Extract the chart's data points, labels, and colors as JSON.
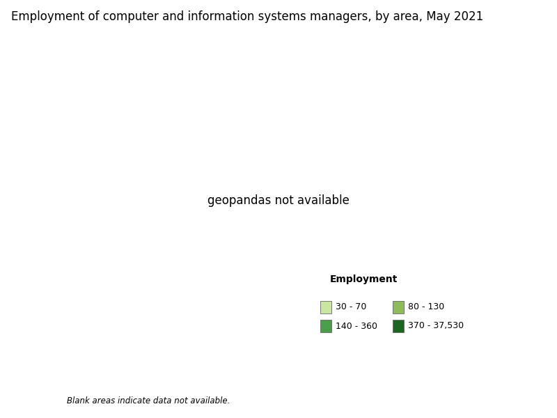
{
  "title": "Employment of computer and information systems managers, by area, May 2021",
  "legend_title": "Employment",
  "legend_entries": [
    {
      "label": "30 - 70",
      "color": "#c8e6a0"
    },
    {
      "label": "80 - 130",
      "color": "#8fbc5a"
    },
    {
      "label": "140 - 360",
      "color": "#4a9e4a"
    },
    {
      "label": "370 - 37,530",
      "color": "#1a6620"
    }
  ],
  "blank_note": "Blank areas indicate data not available.",
  "background_color": "#ffffff",
  "title_fontsize": 12,
  "map_facecolor": "#ffffff",
  "state_colors": {
    "Alabama": "#4a9e4a",
    "Alaska": "#c8e6a0",
    "Arizona": "#4a9e4a",
    "Arkansas": "#c8e6a0",
    "California": "#1a6620",
    "Colorado": "#4a9e4a",
    "Connecticut": "#1a6620",
    "Delaware": "#8fbc5a",
    "Florida": "#1a6620",
    "Georgia": "#1a6620",
    "Hawaii": "#c8e6a0",
    "Idaho": "#c8e6a0",
    "Illinois": "#1a6620",
    "Indiana": "#4a9e4a",
    "Iowa": "#8fbc5a",
    "Kansas": "#8fbc5a",
    "Kentucky": "#4a9e4a",
    "Louisiana": "#4a9e4a",
    "Maine": "#8fbc5a",
    "Maryland": "#1a6620",
    "Massachusetts": "#1a6620",
    "Michigan": "#1a6620",
    "Minnesota": "#1a6620",
    "Mississippi": "#c8e6a0",
    "Missouri": "#4a9e4a",
    "Montana": "#c8e6a0",
    "Nebraska": "#ffffff",
    "Nevada": "#8fbc5a",
    "New Hampshire": "#8fbc5a",
    "New Jersey": "#1a6620",
    "New Mexico": "#c8e6a0",
    "New York": "#1a6620",
    "North Carolina": "#1a6620",
    "North Dakota": "#c8e6a0",
    "Ohio": "#1a6620",
    "Oklahoma": "#4a9e4a",
    "Oregon": "#4a9e4a",
    "Pennsylvania": "#1a6620",
    "Rhode Island": "#4a9e4a",
    "South Carolina": "#4a9e4a",
    "South Dakota": "#c8e6a0",
    "Tennessee": "#4a9e4a",
    "Texas": "#1a6620",
    "Utah": "#ffffff",
    "Vermont": "#c8e6a0",
    "Virginia": "#1a6620",
    "Washington": "#1a6620",
    "West Virginia": "#c8e6a0",
    "Wisconsin": "#4a9e4a",
    "Wyoming": "#ffffff"
  }
}
